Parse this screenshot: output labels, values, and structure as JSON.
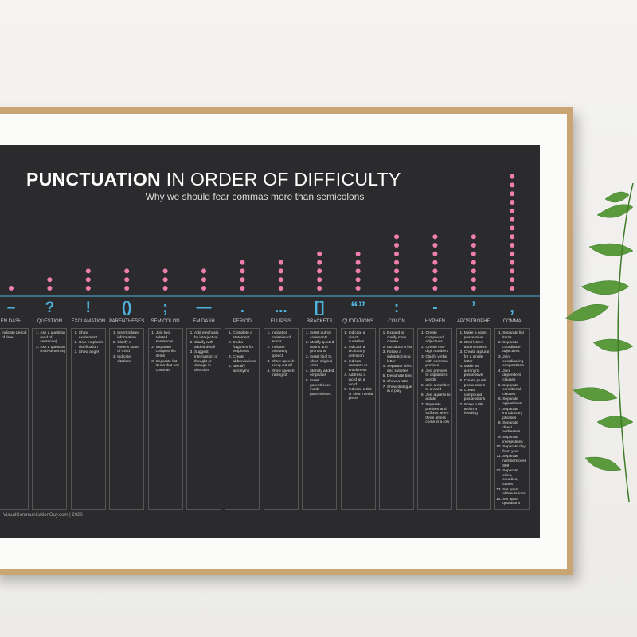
{
  "chart_data": {
    "type": "dot",
    "title": "PUNCTUATION",
    "title_rest": "IN ORDER OF DIFFICULTY",
    "subtitle": "Why we should fear commas more than semicolons",
    "dot_color": "#f07fb0",
    "symbol_color": "#4fb3e0",
    "categories": [
      "EN DASH",
      "QUESTION",
      "EXCLAMATION",
      "PARENTHESES",
      "SEMICOLON",
      "EM DASH",
      "PERIOD",
      "ELLIPSIS",
      "BRACKETS",
      "QUOTATIONS",
      "COLON",
      "HYPHEN",
      "APOSTROPHE",
      "COMMA"
    ],
    "symbols": [
      "–",
      "?",
      "!",
      "()",
      ";",
      "—",
      ".",
      "...",
      "[]",
      "“”",
      ":",
      "-",
      "’",
      ","
    ],
    "values": [
      1,
      2,
      3,
      3,
      3,
      3,
      4,
      4,
      5,
      5,
      7,
      7,
      7,
      14
    ],
    "uses": [
      [
        "Indicate period of time"
      ],
      [
        "Ask a question (end of sentence)",
        "Ask a question (mid-sentence)"
      ],
      [
        "Show excitement",
        "Give emphatic clarification",
        "Show anger"
      ],
      [
        "Insert related information",
        "Clarify a writer's state of mind",
        "Indicate citations"
      ],
      [
        "Join two related sentences",
        "Separate complex list items",
        "Separate list items that use commas"
      ],
      [
        "Add emphasis by interjection",
        "Clarify with added detail",
        "Suggest interruption of thought or change in direction"
      ],
      [
        "Complete a statement",
        "End a fragment for emphasis",
        "Create abbreviations",
        "Identify acronyms"
      ],
      [
        "Indication omission of words",
        "Indicate hesitating speech",
        "Show speech being cut off",
        "Show speech trailing off"
      ],
      [
        "Insert author comments",
        "Modify quoted nouns and pronouns",
        "Insert [sic] to show original error",
        "Identify added emphasis",
        "Insert parentheses inside parentheses"
      ],
      [
        "Indicate a direct quotation",
        "Indicate a dictionary definition",
        "Indicate sarcasm or snarkiness",
        "Address a word as a word",
        "Indicate a title or short media piece"
      ],
      [
        "Expand or clarify main clause",
        "Introduce a list",
        "Follow a salutation in a letter",
        "Separate titles and subtitles",
        "Designate time",
        "Show a ratio",
        "Show dialogue in a play"
      ],
      [
        "Create compound adjectives",
        "Create two-digit numbers",
        "Clarify verbs with common prefixes",
        "Join prefixes to capitalized words",
        "Join a number to a word",
        "Join a prefix to a date",
        "Separate prefixes and suffixes when three letters come in a row"
      ],
      [
        "Make a noun possessive",
        "Omit letters and numbers",
        "Create a plural for a single letter",
        "Make an acronym possessive",
        "Create plural possessions",
        "Create compound possessions",
        "Show a title within a heading"
      ],
      [
        "Separate list items",
        "Separate coordinate adjectives",
        "Join coordinating conjunctions",
        "Join dependent clauses",
        "Separate conditional clauses",
        "Separate appositives",
        "Separate introductory phrases",
        "Separate direct addresses",
        "Separate interjections",
        "Separate day from year",
        "Separate numbers over 999",
        "Separate cities, counties, states",
        "Set apart abbreviations",
        "Set apart quotations"
      ]
    ],
    "footer": "VisualCommunicationGuy.com | 2020"
  }
}
